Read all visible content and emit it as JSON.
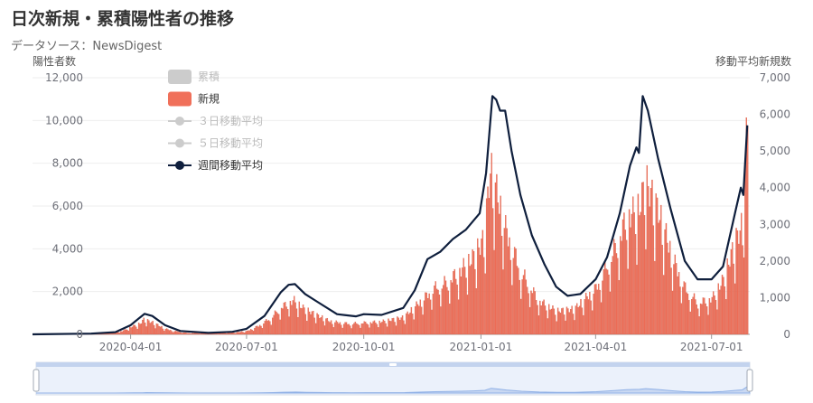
{
  "title": "日次新規・累積陽性者の推移",
  "subtitle": "データソース：NewsDigest",
  "colors": {
    "bar": "#f0705a",
    "bar_stroke": "#d35a44",
    "line": "#0f1f3d",
    "legend_inactive": "#cccccc",
    "grid": "#eeeeee",
    "zoom_fill": "#dbe6f8",
    "zoom_line": "#8fb0e6"
  },
  "chart_data": {
    "type": "bar",
    "title": "日次新規・累積陽性者の推移",
    "y_left": {
      "label": "陽性者数",
      "ylim": [
        0,
        12000
      ],
      "ticks": [
        0,
        2000,
        4000,
        6000,
        8000,
        10000,
        12000
      ],
      "tick_labels": [
        "0",
        "2,000",
        "4,000",
        "6,000",
        "8,000",
        "10,000",
        "12,000"
      ]
    },
    "y_right": {
      "label": "移動平均新規数",
      "ylim": [
        0,
        7000
      ],
      "ticks": [
        0,
        1000,
        2000,
        3000,
        4000,
        5000,
        6000,
        7000
      ],
      "tick_labels": [
        "0",
        "1,000",
        "2,000",
        "3,000",
        "4,000",
        "5,000",
        "6,000",
        "7,000"
      ]
    },
    "x_range": [
      "2020-01-15",
      "2021-07-31"
    ],
    "x_ticks": [
      "2020-04-01",
      "2020-07-01",
      "2020-10-01",
      "2021-01-01",
      "2021-04-01",
      "2021-07-01"
    ],
    "legend": [
      {
        "name": "累積",
        "kind": "rect",
        "active": false
      },
      {
        "name": "新規",
        "kind": "rect",
        "active": true
      },
      {
        "name": "３日移動平均",
        "kind": "line",
        "active": false
      },
      {
        "name": "５日移動平均",
        "kind": "line",
        "active": false
      },
      {
        "name": "週間移動平均",
        "kind": "line",
        "active": true
      }
    ],
    "series": [
      {
        "name": "新規",
        "axis": "left",
        "kind": "bar",
        "points": [
          [
            "2020-01-15",
            0
          ],
          [
            "2020-02-15",
            10
          ],
          [
            "2020-03-01",
            30
          ],
          [
            "2020-03-15",
            50
          ],
          [
            "2020-03-25",
            150
          ],
          [
            "2020-04-01",
            350
          ],
          [
            "2020-04-08",
            500
          ],
          [
            "2020-04-11",
            700
          ],
          [
            "2020-04-18",
            560
          ],
          [
            "2020-04-28",
            260
          ],
          [
            "2020-05-05",
            150
          ],
          [
            "2020-05-15",
            60
          ],
          [
            "2020-06-01",
            40
          ],
          [
            "2020-06-20",
            70
          ],
          [
            "2020-07-01",
            150
          ],
          [
            "2020-07-10",
            400
          ],
          [
            "2020-07-20",
            800
          ],
          [
            "2020-07-28",
            1300
          ],
          [
            "2020-08-03",
            1500
          ],
          [
            "2020-08-07",
            1600
          ],
          [
            "2020-08-15",
            1200
          ],
          [
            "2020-08-25",
            900
          ],
          [
            "2020-09-05",
            600
          ],
          [
            "2020-09-20",
            500
          ],
          [
            "2020-10-01",
            550
          ],
          [
            "2020-10-15",
            600
          ],
          [
            "2020-11-01",
            800
          ],
          [
            "2020-11-15",
            1600
          ],
          [
            "2020-11-25",
            2200
          ],
          [
            "2020-12-05",
            2500
          ],
          [
            "2020-12-15",
            3000
          ],
          [
            "2020-12-25",
            3600
          ],
          [
            "2021-01-03",
            4500
          ],
          [
            "2021-01-08",
            7800
          ],
          [
            "2021-01-14",
            6500
          ],
          [
            "2021-01-20",
            5000
          ],
          [
            "2021-02-01",
            3000
          ],
          [
            "2021-02-15",
            1600
          ],
          [
            "2021-03-01",
            1100
          ],
          [
            "2021-03-15",
            1200
          ],
          [
            "2021-04-01",
            2200
          ],
          [
            "2021-04-15",
            4000
          ],
          [
            "2021-04-25",
            5500
          ],
          [
            "2021-05-05",
            6000
          ],
          [
            "2021-05-10",
            7200
          ],
          [
            "2021-05-20",
            5800
          ],
          [
            "2021-06-01",
            3500
          ],
          [
            "2021-06-10",
            2200
          ],
          [
            "2021-06-20",
            1500
          ],
          [
            "2021-07-01",
            1700
          ],
          [
            "2021-07-10",
            2600
          ],
          [
            "2021-07-20",
            4500
          ],
          [
            "2021-07-25",
            5200
          ],
          [
            "2021-07-29",
            10500
          ]
        ]
      },
      {
        "name": "週間移動平均",
        "axis": "right",
        "kind": "line",
        "points": [
          [
            "2020-01-15",
            0
          ],
          [
            "2020-03-01",
            20
          ],
          [
            "2020-03-20",
            60
          ],
          [
            "2020-04-01",
            250
          ],
          [
            "2020-04-08",
            450
          ],
          [
            "2020-04-12",
            560
          ],
          [
            "2020-04-18",
            500
          ],
          [
            "2020-04-28",
            250
          ],
          [
            "2020-05-10",
            90
          ],
          [
            "2020-06-01",
            40
          ],
          [
            "2020-06-20",
            70
          ],
          [
            "2020-07-01",
            150
          ],
          [
            "2020-07-15",
            500
          ],
          [
            "2020-07-28",
            1150
          ],
          [
            "2020-08-03",
            1350
          ],
          [
            "2020-08-08",
            1370
          ],
          [
            "2020-08-16",
            1100
          ],
          [
            "2020-08-25",
            900
          ],
          [
            "2020-09-10",
            550
          ],
          [
            "2020-09-25",
            490
          ],
          [
            "2020-10-01",
            550
          ],
          [
            "2020-10-15",
            530
          ],
          [
            "2020-11-01",
            720
          ],
          [
            "2020-11-10",
            1200
          ],
          [
            "2020-11-20",
            2050
          ],
          [
            "2020-11-30",
            2250
          ],
          [
            "2020-12-10",
            2600
          ],
          [
            "2020-12-20",
            2850
          ],
          [
            "2020-12-31",
            3300
          ],
          [
            "2021-01-05",
            4400
          ],
          [
            "2021-01-10",
            6500
          ],
          [
            "2021-01-13",
            6400
          ],
          [
            "2021-01-16",
            6100
          ],
          [
            "2021-01-20",
            6100
          ],
          [
            "2021-01-25",
            5000
          ],
          [
            "2021-02-01",
            3800
          ],
          [
            "2021-02-10",
            2700
          ],
          [
            "2021-02-20",
            1900
          ],
          [
            "2021-03-01",
            1300
          ],
          [
            "2021-03-10",
            1050
          ],
          [
            "2021-03-20",
            1100
          ],
          [
            "2021-04-01",
            1500
          ],
          [
            "2021-04-10",
            2100
          ],
          [
            "2021-04-20",
            3300
          ],
          [
            "2021-04-28",
            4600
          ],
          [
            "2021-05-03",
            5100
          ],
          [
            "2021-05-05",
            4950
          ],
          [
            "2021-05-08",
            6500
          ],
          [
            "2021-05-12",
            6100
          ],
          [
            "2021-05-20",
            4800
          ],
          [
            "2021-05-30",
            3400
          ],
          [
            "2021-06-10",
            2000
          ],
          [
            "2021-06-20",
            1500
          ],
          [
            "2021-07-01",
            1500
          ],
          [
            "2021-07-10",
            1850
          ],
          [
            "2021-07-20",
            3400
          ],
          [
            "2021-07-24",
            4000
          ],
          [
            "2021-07-26",
            3800
          ],
          [
            "2021-07-29",
            5700
          ]
        ]
      }
    ]
  }
}
